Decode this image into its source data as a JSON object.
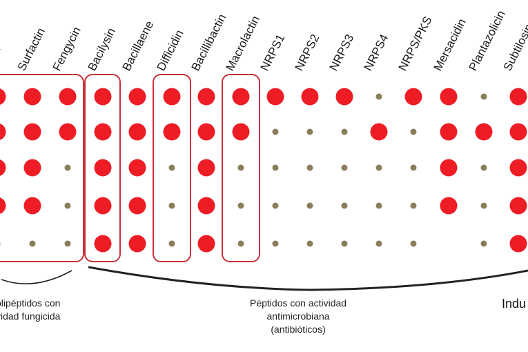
{
  "columns": [
    {
      "label": "Iturin"
    },
    {
      "label": "Surfactin"
    },
    {
      "label": "Fengycin"
    },
    {
      "label": "Bacilysin"
    },
    {
      "label": "Bacillaene"
    },
    {
      "label": "Difficidin"
    },
    {
      "label": "Bacillibactin"
    },
    {
      "label": "Macrolactin"
    },
    {
      "label": "NRPS1"
    },
    {
      "label": "NRPS2"
    },
    {
      "label": "NRPS3"
    },
    {
      "label": "NRPS4"
    },
    {
      "label": "NRPS/PKS"
    },
    {
      "label": "Mersacidin"
    },
    {
      "label": "Plantazolicin"
    },
    {
      "label": "Subtilosin"
    }
  ],
  "matrix": [
    [
      "large",
      "large",
      "large",
      "large",
      "large",
      "large",
      "large",
      "large",
      "large",
      "large",
      "large",
      "small",
      "large",
      "large",
      "small",
      "large"
    ],
    [
      "large",
      "large",
      "large",
      "large",
      "large",
      "large",
      "large",
      "large",
      "small",
      "small",
      "small",
      "large",
      "small",
      "large",
      "large",
      "large"
    ],
    [
      "large",
      "large",
      "small",
      "large",
      "large",
      "small",
      "large",
      "small",
      "small",
      "small",
      "small",
      "small",
      "small",
      "large",
      "small",
      "large"
    ],
    [
      "large",
      "large",
      "small",
      "large",
      "large",
      "small",
      "large",
      "small",
      "small",
      "small",
      "small",
      "small",
      "small",
      "large",
      "small",
      "large"
    ],
    [
      "small",
      "small",
      "small",
      "large",
      "large",
      "small",
      "large",
      "small",
      "small",
      "small",
      "small",
      "small",
      "small",
      "none",
      "small",
      "large"
    ]
  ],
  "legend": {
    "large": "present",
    "small": "absent"
  },
  "colors": {
    "large_dot": "#ee1c25",
    "small_dot": "#8a7d5a",
    "box": "#c8303a",
    "brace": "#222222"
  },
  "captions": {
    "lipopeptides": [
      "olipéptidos con",
      "vidad fungicida"
    ],
    "antimicrobial": [
      "Péptidos con actividad",
      "antimicrobiana",
      "(antibióticos)"
    ],
    "right": "Indu"
  }
}
